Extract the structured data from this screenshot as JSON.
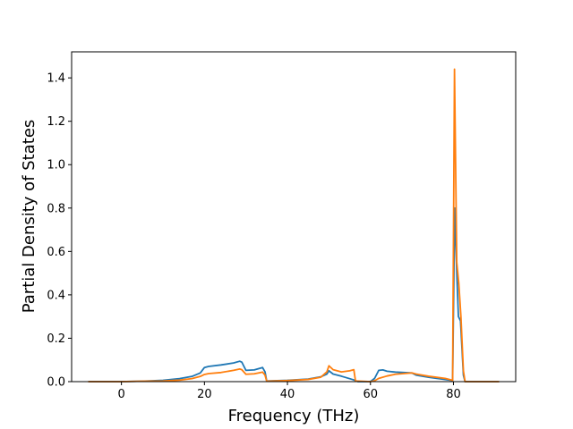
{
  "chart_data": {
    "type": "line",
    "title": "",
    "xlabel": "Frequency (THz)",
    "ylabel": "Partial Density of States",
    "xlim": [
      -12,
      95
    ],
    "ylim": [
      0,
      1.52
    ],
    "xticks": [
      0,
      20,
      40,
      60,
      80
    ],
    "xtick_labels": [
      "0",
      "20",
      "40",
      "60",
      "80"
    ],
    "yticks": [
      0.0,
      0.2,
      0.4,
      0.6,
      0.8,
      1.0,
      1.2,
      1.4
    ],
    "ytick_labels": [
      "0.0",
      "0.2",
      "0.4",
      "0.6",
      "0.8",
      "1.0",
      "1.2",
      "1.4"
    ],
    "grid": false,
    "legend": "none",
    "series": [
      {
        "color": "#1f77b4",
        "points": [
          [
            -8,
            0
          ],
          [
            0,
            0
          ],
          [
            5,
            0.002
          ],
          [
            10,
            0.006
          ],
          [
            14,
            0.014
          ],
          [
            17,
            0.024
          ],
          [
            19,
            0.04
          ],
          [
            20,
            0.065
          ],
          [
            21,
            0.07
          ],
          [
            24,
            0.077
          ],
          [
            27,
            0.086
          ],
          [
            28.5,
            0.094
          ],
          [
            29,
            0.09
          ],
          [
            30,
            0.052
          ],
          [
            32,
            0.054
          ],
          [
            34,
            0.065
          ],
          [
            34.6,
            0.045
          ],
          [
            35,
            0.003
          ],
          [
            40,
            0.006
          ],
          [
            45,
            0.012
          ],
          [
            48,
            0.022
          ],
          [
            49.5,
            0.035
          ],
          [
            50,
            0.05
          ],
          [
            51,
            0.035
          ],
          [
            53,
            0.025
          ],
          [
            56,
            0.008
          ],
          [
            57,
            0
          ],
          [
            60,
            0
          ],
          [
            61,
            0.015
          ],
          [
            62,
            0.052
          ],
          [
            63,
            0.054
          ],
          [
            64,
            0.048
          ],
          [
            66,
            0.044
          ],
          [
            70,
            0.04
          ],
          [
            71,
            0.03
          ],
          [
            74,
            0.02
          ],
          [
            78,
            0.01
          ],
          [
            79.8,
            0.005
          ],
          [
            80.3,
            0.8
          ],
          [
            80.8,
            0.5
          ],
          [
            81.2,
            0.3
          ],
          [
            81.7,
            0.28
          ],
          [
            82.4,
            0.03
          ],
          [
            82.8,
            0
          ],
          [
            91,
            0
          ]
        ]
      },
      {
        "color": "#ff7f0e",
        "points": [
          [
            -8,
            0
          ],
          [
            0,
            0
          ],
          [
            5,
            0.002
          ],
          [
            10,
            0.003
          ],
          [
            14,
            0.007
          ],
          [
            17,
            0.014
          ],
          [
            19,
            0.024
          ],
          [
            20,
            0.033
          ],
          [
            21,
            0.037
          ],
          [
            24,
            0.042
          ],
          [
            27,
            0.052
          ],
          [
            28.5,
            0.058
          ],
          [
            29,
            0.055
          ],
          [
            30,
            0.034
          ],
          [
            32,
            0.036
          ],
          [
            34,
            0.044
          ],
          [
            34.6,
            0.03
          ],
          [
            35,
            0.002
          ],
          [
            40,
            0.005
          ],
          [
            45,
            0.01
          ],
          [
            48,
            0.02
          ],
          [
            49.5,
            0.045
          ],
          [
            50,
            0.073
          ],
          [
            51,
            0.055
          ],
          [
            53,
            0.045
          ],
          [
            55,
            0.05
          ],
          [
            56,
            0.055
          ],
          [
            56.4,
            0.003
          ],
          [
            60,
            0
          ],
          [
            61,
            0.004
          ],
          [
            62,
            0.015
          ],
          [
            64,
            0.026
          ],
          [
            66,
            0.034
          ],
          [
            70,
            0.04
          ],
          [
            71,
            0.035
          ],
          [
            74,
            0.025
          ],
          [
            78,
            0.015
          ],
          [
            79.8,
            0.006
          ],
          [
            80.25,
            1.44
          ],
          [
            80.8,
            0.55
          ],
          [
            81.3,
            0.45
          ],
          [
            81.8,
            0.3
          ],
          [
            82.4,
            0.05
          ],
          [
            82.8,
            0
          ],
          [
            91,
            0
          ]
        ]
      }
    ]
  }
}
